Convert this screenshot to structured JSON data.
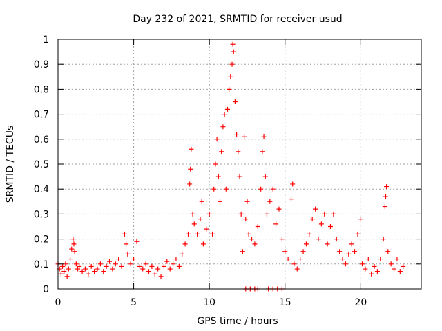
{
  "chart_data": {
    "type": "scatter",
    "title": "Day 232 of 2021, SRMTID for receiver usud",
    "xlabel": "GPS time / hours",
    "ylabel": "SRMTID / TECUs",
    "xlim": [
      0,
      24
    ],
    "ylim": [
      0,
      1
    ],
    "x_ticks": [
      0,
      5,
      10,
      15,
      20
    ],
    "x_tick_labels": [
      "0",
      "5",
      "10",
      "15",
      "20"
    ],
    "y_ticks": [
      0,
      0.1,
      0.2,
      0.3,
      0.4,
      0.5,
      0.6,
      0.7,
      0.8,
      0.9,
      1
    ],
    "y_tick_labels": [
      "0",
      "0.1",
      "0.2",
      "0.3",
      "0.4",
      "0.5",
      "0.6",
      "0.7",
      "0.8",
      "0.9",
      "1"
    ],
    "grid": true,
    "marker": "+",
    "series_color": "#ff0000",
    "series": [
      {
        "name": "SRMTID",
        "points": [
          [
            0.0,
            0.1
          ],
          [
            0.1,
            0.08
          ],
          [
            0.2,
            0.06
          ],
          [
            0.3,
            0.09
          ],
          [
            0.4,
            0.07
          ],
          [
            0.5,
            0.1
          ],
          [
            0.6,
            0.05
          ],
          [
            0.7,
            0.08
          ],
          [
            0.8,
            0.12
          ],
          [
            0.9,
            0.16
          ],
          [
            1.0,
            0.2
          ],
          [
            1.05,
            0.18
          ],
          [
            1.1,
            0.15
          ],
          [
            1.2,
            0.1
          ],
          [
            1.3,
            0.08
          ],
          [
            1.4,
            0.09
          ],
          [
            1.6,
            0.07
          ],
          [
            1.8,
            0.08
          ],
          [
            2.0,
            0.06
          ],
          [
            2.2,
            0.09
          ],
          [
            2.4,
            0.07
          ],
          [
            2.6,
            0.08
          ],
          [
            2.8,
            0.1
          ],
          [
            3.0,
            0.07
          ],
          [
            3.2,
            0.09
          ],
          [
            3.4,
            0.11
          ],
          [
            3.6,
            0.08
          ],
          [
            3.8,
            0.1
          ],
          [
            4.0,
            0.12
          ],
          [
            4.2,
            0.09
          ],
          [
            4.4,
            0.22
          ],
          [
            4.5,
            0.18
          ],
          [
            4.6,
            0.14
          ],
          [
            4.8,
            0.1
          ],
          [
            5.0,
            0.12
          ],
          [
            5.2,
            0.19
          ],
          [
            5.4,
            0.09
          ],
          [
            5.6,
            0.08
          ],
          [
            5.8,
            0.1
          ],
          [
            6.0,
            0.07
          ],
          [
            6.2,
            0.09
          ],
          [
            6.4,
            0.06
          ],
          [
            6.6,
            0.08
          ],
          [
            6.8,
            0.05
          ],
          [
            7.0,
            0.09
          ],
          [
            7.2,
            0.11
          ],
          [
            7.4,
            0.08
          ],
          [
            7.6,
            0.1
          ],
          [
            7.8,
            0.12
          ],
          [
            8.0,
            0.09
          ],
          [
            8.2,
            0.14
          ],
          [
            8.4,
            0.18
          ],
          [
            8.6,
            0.22
          ],
          [
            8.7,
            0.42
          ],
          [
            8.75,
            0.48
          ],
          [
            8.8,
            0.56
          ],
          [
            8.9,
            0.3
          ],
          [
            9.0,
            0.26
          ],
          [
            9.2,
            0.22
          ],
          [
            9.4,
            0.28
          ],
          [
            9.5,
            0.35
          ],
          [
            9.6,
            0.18
          ],
          [
            9.8,
            0.24
          ],
          [
            10.0,
            0.3
          ],
          [
            10.2,
            0.22
          ],
          [
            10.3,
            0.4
          ],
          [
            10.4,
            0.5
          ],
          [
            10.5,
            0.6
          ],
          [
            10.6,
            0.45
          ],
          [
            10.7,
            0.35
          ],
          [
            10.8,
            0.55
          ],
          [
            10.9,
            0.65
          ],
          [
            11.0,
            0.7
          ],
          [
            11.1,
            0.4
          ],
          [
            11.2,
            0.72
          ],
          [
            11.3,
            0.8
          ],
          [
            11.4,
            0.85
          ],
          [
            11.5,
            0.9
          ],
          [
            11.55,
            0.98
          ],
          [
            11.6,
            0.95
          ],
          [
            11.7,
            0.75
          ],
          [
            11.8,
            0.62
          ],
          [
            11.9,
            0.55
          ],
          [
            12.0,
            0.45
          ],
          [
            12.1,
            0.3
          ],
          [
            12.2,
            0.15
          ],
          [
            12.3,
            0.61
          ],
          [
            12.4,
            0.28
          ],
          [
            12.5,
            0.35
          ],
          [
            12.6,
            0.22
          ],
          [
            12.8,
            0.2
          ],
          [
            13.0,
            0.18
          ],
          [
            13.2,
            0.25
          ],
          [
            13.4,
            0.4
          ],
          [
            13.5,
            0.55
          ],
          [
            13.6,
            0.61
          ],
          [
            13.7,
            0.45
          ],
          [
            13.8,
            0.3
          ],
          [
            14.0,
            0.35
          ],
          [
            14.2,
            0.4
          ],
          [
            14.4,
            0.26
          ],
          [
            14.6,
            0.32
          ],
          [
            14.8,
            0.2
          ],
          [
            15.0,
            0.15
          ],
          [
            15.2,
            0.12
          ],
          [
            15.4,
            0.36
          ],
          [
            15.5,
            0.42
          ],
          [
            15.6,
            0.1
          ],
          [
            15.8,
            0.08
          ],
          [
            16.0,
            0.12
          ],
          [
            16.2,
            0.15
          ],
          [
            16.4,
            0.18
          ],
          [
            16.6,
            0.22
          ],
          [
            16.8,
            0.28
          ],
          [
            17.0,
            0.32
          ],
          [
            17.2,
            0.2
          ],
          [
            17.4,
            0.26
          ],
          [
            17.6,
            0.3
          ],
          [
            17.8,
            0.18
          ],
          [
            18.0,
            0.25
          ],
          [
            18.2,
            0.3
          ],
          [
            18.4,
            0.2
          ],
          [
            18.6,
            0.15
          ],
          [
            18.8,
            0.12
          ],
          [
            19.0,
            0.1
          ],
          [
            19.2,
            0.14
          ],
          [
            19.4,
            0.18
          ],
          [
            19.6,
            0.15
          ],
          [
            19.8,
            0.22
          ],
          [
            20.0,
            0.28
          ],
          [
            20.1,
            0.1
          ],
          [
            20.3,
            0.08
          ],
          [
            20.5,
            0.12
          ],
          [
            20.7,
            0.06
          ],
          [
            20.9,
            0.09
          ],
          [
            21.1,
            0.07
          ],
          [
            21.3,
            0.12
          ],
          [
            21.5,
            0.2
          ],
          [
            21.6,
            0.33
          ],
          [
            21.65,
            0.37
          ],
          [
            21.7,
            0.41
          ],
          [
            21.8,
            0.15
          ],
          [
            22.0,
            0.1
          ],
          [
            22.2,
            0.08
          ],
          [
            22.4,
            0.12
          ],
          [
            22.6,
            0.07
          ],
          [
            22.8,
            0.09
          ],
          [
            12.4,
            0.0
          ],
          [
            12.7,
            0.0
          ],
          [
            13.0,
            0.0
          ],
          [
            13.2,
            0.0
          ],
          [
            13.9,
            0.0
          ],
          [
            14.2,
            0.0
          ],
          [
            14.5,
            0.0
          ],
          [
            14.8,
            0.0
          ]
        ]
      }
    ]
  }
}
